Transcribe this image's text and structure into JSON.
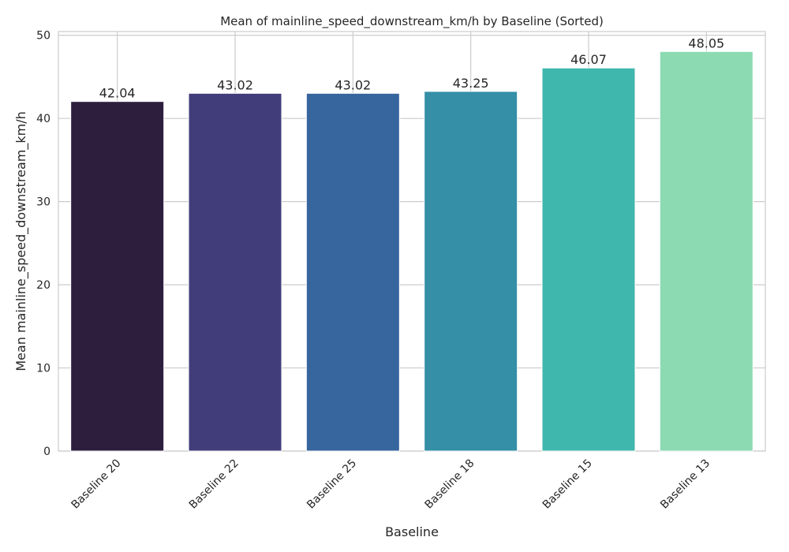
{
  "chart_data": {
    "type": "bar",
    "title": "Mean of mainline_speed_downstream_km/h by Baseline (Sorted)",
    "xlabel": "Baseline",
    "ylabel": "Mean mainline_speed_downstream_km/h",
    "categories": [
      "Baseline 20",
      "Baseline 22",
      "Baseline 25",
      "Baseline 18",
      "Baseline 15",
      "Baseline 13"
    ],
    "values": [
      42.04,
      43.02,
      43.02,
      43.25,
      46.07,
      48.05
    ],
    "data_labels": [
      "42.04",
      "43.02",
      "43.02",
      "43.25",
      "46.07",
      "48.05"
    ],
    "colors": [
      "#2d1e3e",
      "#413d7b",
      "#37659e",
      "#348fa7",
      "#40b7ad",
      "#8bdab2"
    ],
    "ylim": [
      0,
      50.45
    ],
    "yticks": [
      0,
      10,
      20,
      30,
      40,
      50
    ],
    "ytick_labels": [
      "0",
      "10",
      "20",
      "30",
      "40",
      "50"
    ],
    "grid": true,
    "legend": "none"
  }
}
